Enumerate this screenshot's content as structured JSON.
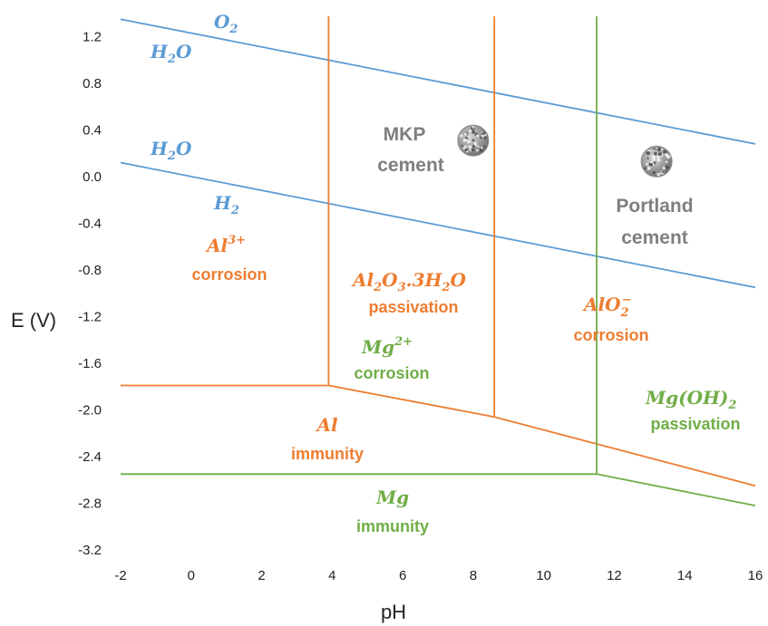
{
  "chart_data": {
    "type": "line",
    "title": "",
    "xlabel": "pH",
    "ylabel": "E (V)",
    "xlim": [
      -2,
      16
    ],
    "ylim": [
      -3.2,
      1.5
    ],
    "x_ticks": [
      "-2",
      "0",
      "2",
      "4",
      "6",
      "8",
      "10",
      "12",
      "14",
      "16"
    ],
    "y_ticks": [
      "1.2",
      "0.8",
      "0.4",
      "0.0",
      "-0.4",
      "-0.8",
      "-1.2",
      "-1.6",
      "-2.0",
      "-2.4",
      "-2.8",
      "-3.2"
    ],
    "grid": false,
    "colors": {
      "water": "#5b9bd5",
      "aluminium": "#ed7d31",
      "magnesium": "#70ad47",
      "cement": "#7f7f7f"
    },
    "series": [
      {
        "key": "o2_h2o",
        "group": "water",
        "points": [
          [
            -2,
            1.35
          ],
          [
            16,
            0.28
          ]
        ]
      },
      {
        "key": "h2o_h2",
        "group": "water",
        "points": [
          [
            -2,
            0.12
          ],
          [
            16,
            -0.95
          ]
        ]
      },
      {
        "key": "al_horizontal",
        "group": "aluminium",
        "points": [
          [
            -2,
            -1.79
          ],
          [
            3.9,
            -1.79
          ],
          [
            8.6,
            -2.06
          ],
          [
            16,
            -2.65
          ]
        ]
      },
      {
        "key": "al_vertical_1",
        "group": "aluminium",
        "points": [
          [
            3.9,
            -1.79
          ],
          [
            3.9,
            1.5
          ]
        ]
      },
      {
        "key": "al_vertical_2",
        "group": "aluminium",
        "points": [
          [
            8.6,
            -2.06
          ],
          [
            8.6,
            1.5
          ]
        ]
      },
      {
        "key": "mg_horizontal",
        "group": "magnesium",
        "points": [
          [
            -2,
            -2.55
          ],
          [
            11.5,
            -2.55
          ],
          [
            16,
            -2.82
          ]
        ]
      },
      {
        "key": "mg_vertical",
        "group": "magnesium",
        "points": [
          [
            11.5,
            -2.55
          ],
          [
            11.5,
            1.5
          ]
        ]
      }
    ],
    "markers": [
      {
        "key": "mkp",
        "x": 8.0,
        "y": 0.31
      },
      {
        "key": "portland",
        "x": 13.2,
        "y": 0.13
      }
    ],
    "annotations": {
      "o2": {
        "base": "O",
        "sub": "2"
      },
      "h2o_upper": {
        "base": "H",
        "sub": "2",
        "tail": "O"
      },
      "h2o_lower": {
        "base": "H",
        "sub": "2",
        "tail": "O"
      },
      "h2": {
        "base": "H",
        "sub": "2"
      },
      "al3_ion": {
        "base": "Al",
        "sup": "3+"
      },
      "al3_word": "corrosion",
      "alumina": {
        "p1": "Al",
        "s1": "2",
        "p2": "O",
        "s2": "3",
        "p3": ".3H",
        "s3": "2",
        "p4": "O"
      },
      "alumina_word": "passivation",
      "mg2_ion": {
        "base": "Mg",
        "sup": "2+"
      },
      "mg2_word": "corrosion",
      "alo2_ion": {
        "base": "AlO",
        "sub": "2",
        "sup": "−"
      },
      "alo2_word": "corrosion",
      "mgoh2_ion": {
        "base": "Mg(OH)",
        "sub": "2"
      },
      "mgoh2_word": "passivation",
      "al_ion": "Al",
      "al_word": "immunity",
      "mg_ion": "Mg",
      "mg_word": "immunity",
      "mkp_line1": "MKP",
      "mkp_line2": "cement",
      "portland_line1": "Portland",
      "portland_line2": "cement"
    }
  }
}
